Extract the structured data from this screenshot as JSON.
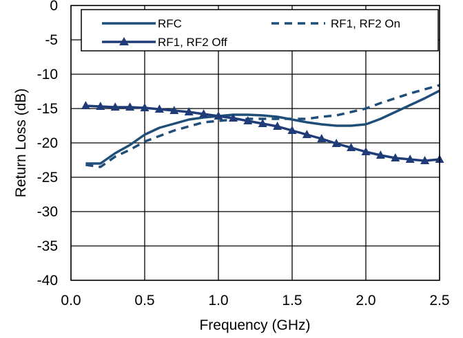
{
  "chart_data": {
    "type": "line",
    "title": "",
    "xlabel": "Frequency (GHz)",
    "ylabel": "Return Loss (dB)",
    "xlim": [
      0.0,
      2.5
    ],
    "ylim": [
      -40,
      0
    ],
    "x_ticks": [
      "0.0",
      "0.5",
      "1.0",
      "1.5",
      "2.0",
      "2.5"
    ],
    "y_ticks": [
      "0",
      "-5",
      "-10",
      "-15",
      "-20",
      "-25",
      "-30",
      "-35",
      "-40"
    ],
    "grid": true,
    "legend_position": "top",
    "series": [
      {
        "name": "RFC",
        "style": "solid",
        "marker": "none",
        "color": "#1f4e79",
        "x": [
          0.1,
          0.2,
          0.3,
          0.4,
          0.5,
          0.6,
          0.7,
          0.8,
          0.9,
          1.0,
          1.1,
          1.2,
          1.3,
          1.4,
          1.5,
          1.6,
          1.7,
          1.8,
          1.9,
          2.0,
          2.1,
          2.2,
          2.3,
          2.4,
          2.5
        ],
        "y": [
          -23.0,
          -23.0,
          -21.5,
          -20.3,
          -18.8,
          -17.8,
          -17.2,
          -16.6,
          -16.3,
          -16.1,
          -15.9,
          -15.9,
          -16.0,
          -16.2,
          -16.6,
          -17.0,
          -17.3,
          -17.5,
          -17.5,
          -17.3,
          -16.5,
          -15.5,
          -14.5,
          -13.5,
          -12.4
        ]
      },
      {
        "name": "RF1, RF2 On",
        "style": "dashed",
        "marker": "none",
        "color": "#1f4e79",
        "x": [
          0.1,
          0.2,
          0.3,
          0.4,
          0.5,
          0.6,
          0.7,
          0.8,
          0.9,
          1.0,
          1.1,
          1.2,
          1.3,
          1.4,
          1.5,
          1.6,
          1.7,
          1.8,
          1.9,
          2.0,
          2.1,
          2.2,
          2.3,
          2.4,
          2.5
        ],
        "y": [
          -23.2,
          -23.5,
          -22.0,
          -21.0,
          -19.8,
          -19.0,
          -18.2,
          -17.6,
          -17.0,
          -16.8,
          -16.6,
          -16.5,
          -16.5,
          -16.5,
          -16.5,
          -16.5,
          -16.2,
          -16.0,
          -15.5,
          -15.0,
          -14.2,
          -13.5,
          -12.8,
          -12.2,
          -11.6
        ]
      },
      {
        "name": "RF1, RF2 Off",
        "style": "solid",
        "marker": "triangle",
        "color": "#1f3c78",
        "x": [
          0.1,
          0.2,
          0.3,
          0.4,
          0.5,
          0.6,
          0.7,
          0.8,
          0.9,
          1.0,
          1.1,
          1.2,
          1.3,
          1.4,
          1.5,
          1.6,
          1.7,
          1.8,
          1.9,
          2.0,
          2.1,
          2.2,
          2.3,
          2.4,
          2.5
        ],
        "y": [
          -14.6,
          -14.7,
          -14.8,
          -14.8,
          -14.9,
          -15.1,
          -15.3,
          -15.5,
          -15.8,
          -16.1,
          -16.4,
          -16.8,
          -17.2,
          -17.6,
          -18.2,
          -18.8,
          -19.4,
          -20.1,
          -20.7,
          -21.3,
          -21.8,
          -22.2,
          -22.4,
          -22.6,
          -22.4
        ]
      }
    ]
  }
}
